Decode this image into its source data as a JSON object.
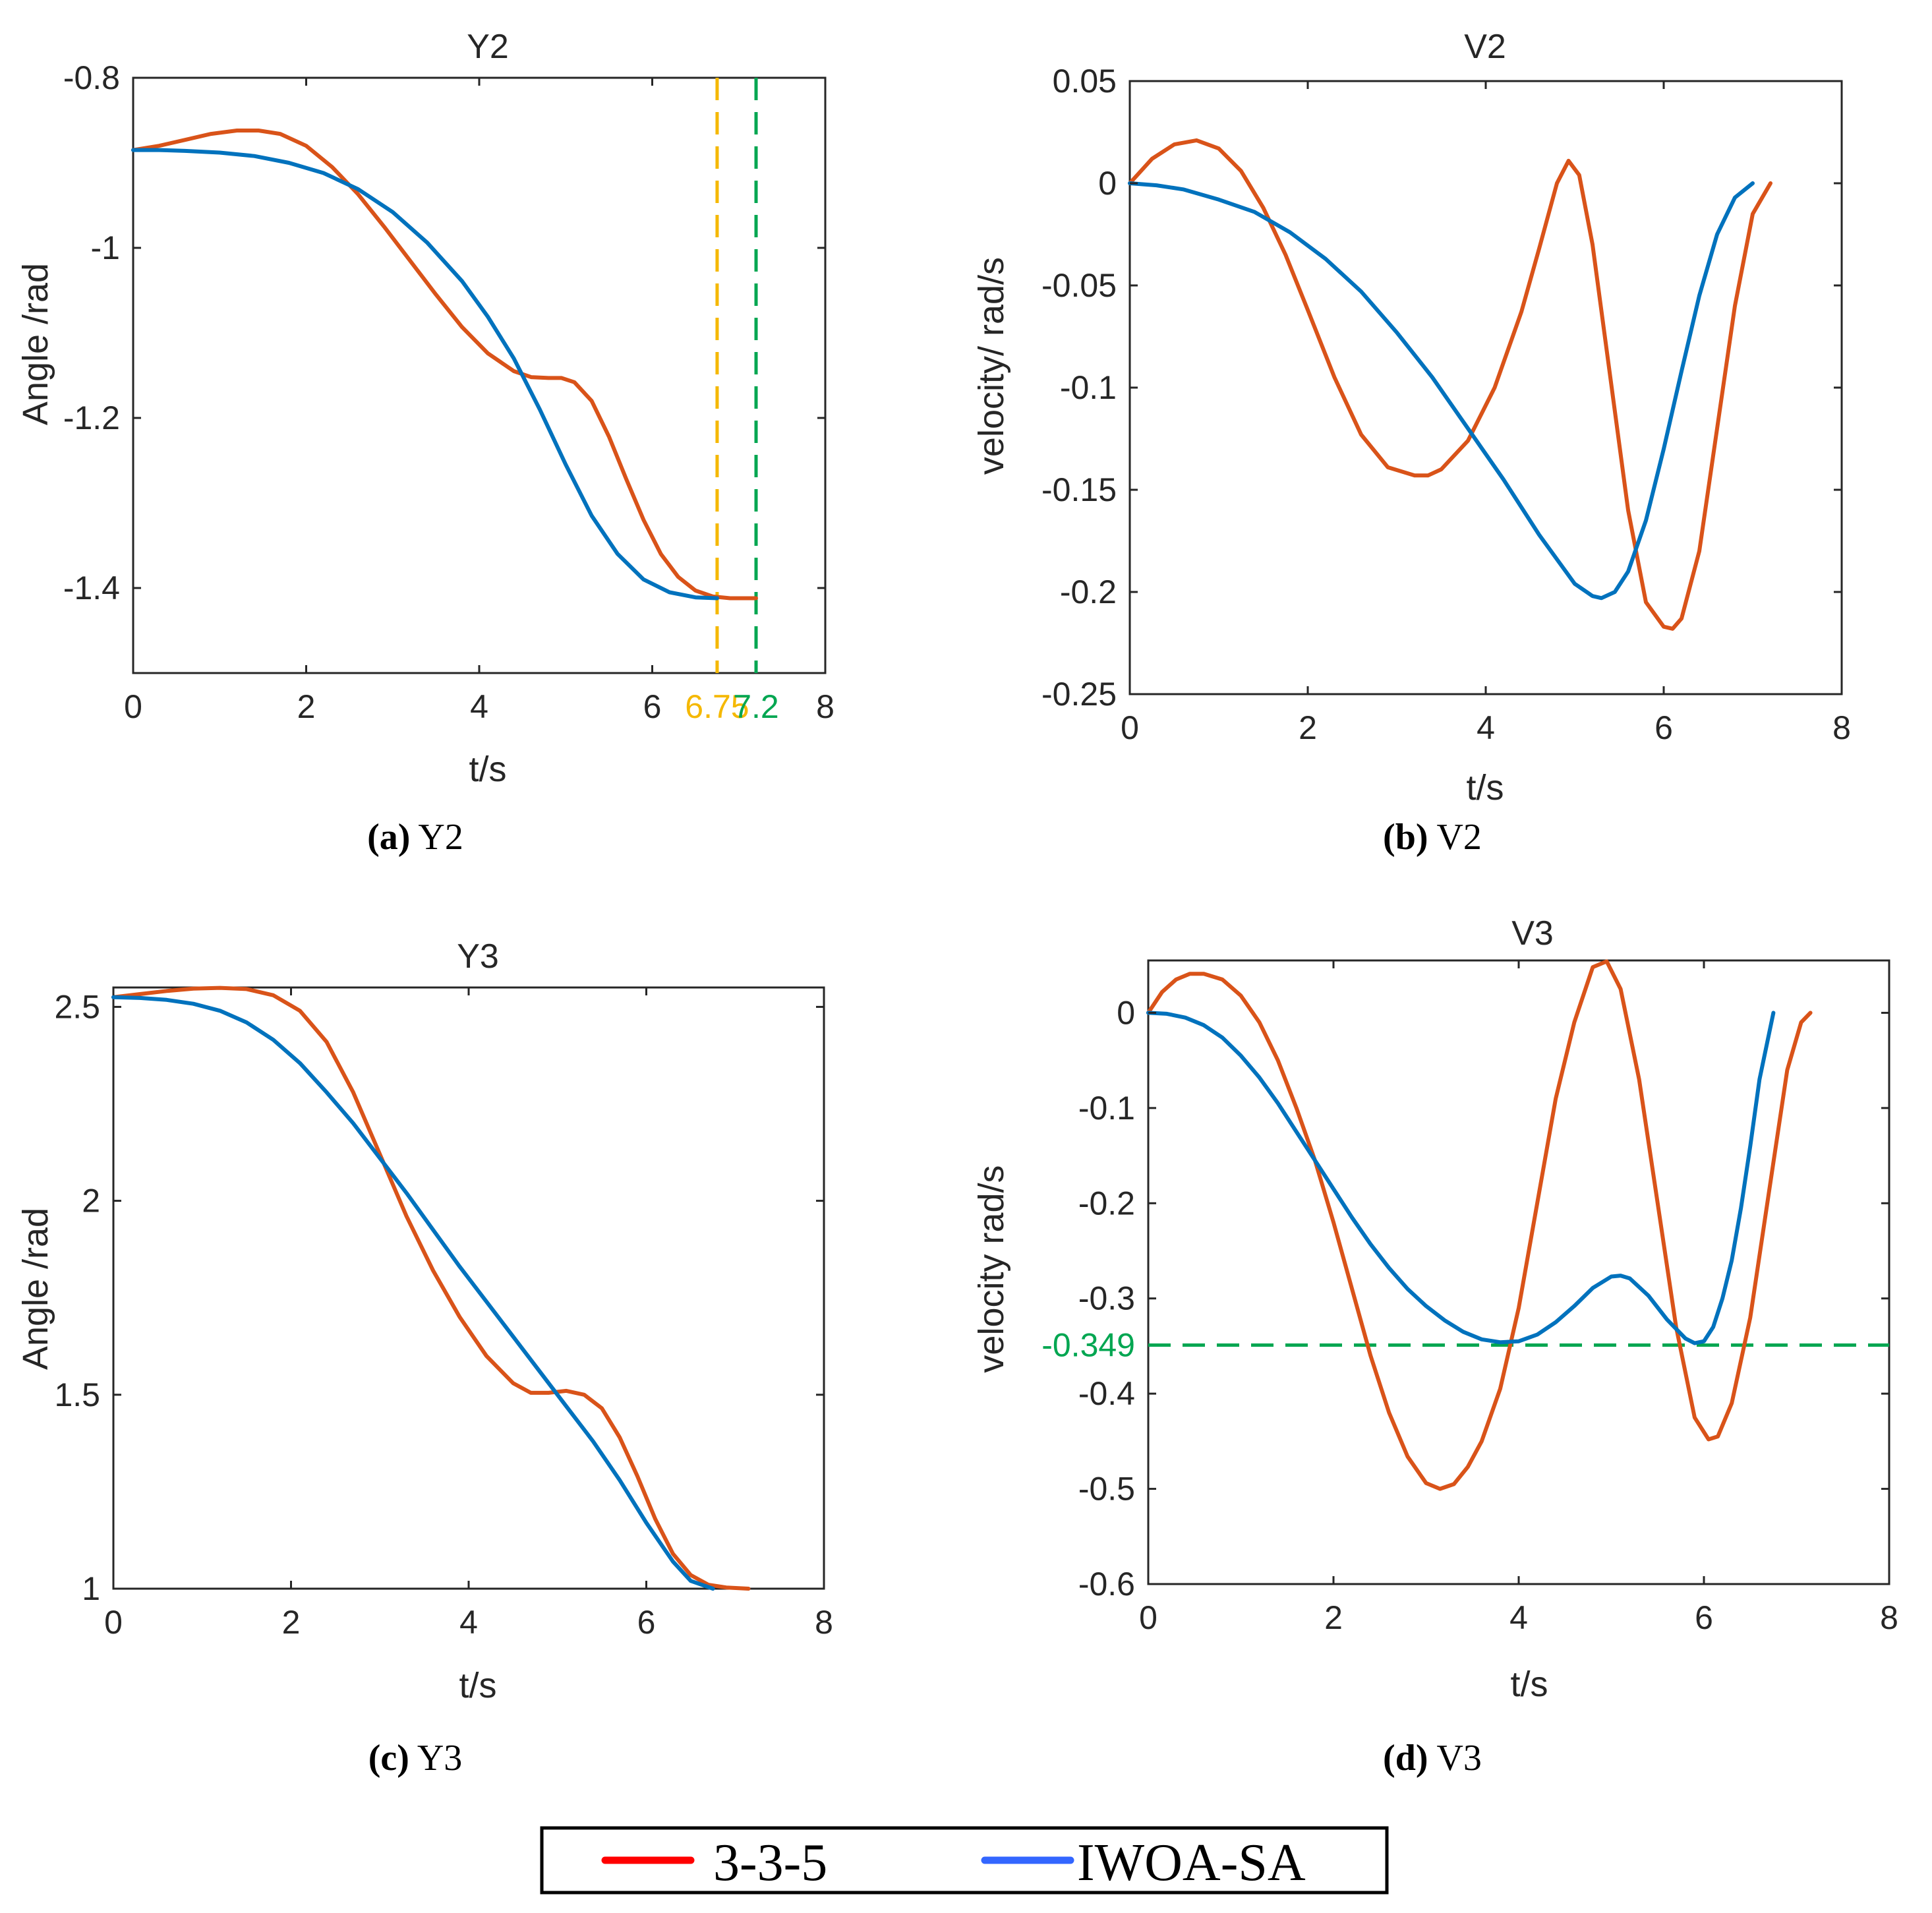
{
  "chart_data": [
    {
      "id": "a",
      "type": "line",
      "title": "Y2",
      "xlabel": "t/s",
      "ylabel": "Angle /rad",
      "xlim": [
        0,
        8
      ],
      "ylim": [
        -1.5,
        -0.8
      ],
      "xticks": [
        {
          "v": 0,
          "label": "0"
        },
        {
          "v": 2,
          "label": "2"
        },
        {
          "v": 4,
          "label": "4"
        },
        {
          "v": 6,
          "label": "6"
        },
        {
          "v": 6.75,
          "label": "6.75",
          "color": "#f5b800"
        },
        {
          "v": 7.2,
          "label": "7.2",
          "color": "#00a651"
        },
        {
          "v": 8,
          "label": "8"
        }
      ],
      "yticks": [
        {
          "v": -0.8,
          "label": "-0.8"
        },
        {
          "v": -1,
          "label": "-1"
        },
        {
          "v": -1.2,
          "label": "-1.2"
        },
        {
          "v": -1.4,
          "label": "-1.4"
        }
      ],
      "caption_letter": "(a)",
      "caption_text": " Y2",
      "reference_lines": [
        {
          "orientation": "vertical",
          "value": 6.75,
          "color": "#f5b800"
        },
        {
          "orientation": "vertical",
          "value": 7.2,
          "color": "#00a651"
        }
      ],
      "series": [
        {
          "name": "3-3-5",
          "color": "#d95319",
          "x": [
            0,
            0.3,
            0.6,
            0.9,
            1.2,
            1.45,
            1.7,
            2.0,
            2.3,
            2.6,
            2.9,
            3.2,
            3.5,
            3.8,
            4.1,
            4.4,
            4.6,
            4.8,
            4.95,
            5.1,
            5.3,
            5.5,
            5.7,
            5.9,
            6.1,
            6.3,
            6.5,
            6.7,
            6.9,
            7.2
          ],
          "y": [
            -0.885,
            -0.88,
            -0.873,
            -0.866,
            -0.862,
            -0.862,
            -0.866,
            -0.88,
            -0.905,
            -0.937,
            -0.975,
            -1.015,
            -1.055,
            -1.093,
            -1.124,
            -1.145,
            -1.152,
            -1.153,
            -1.153,
            -1.158,
            -1.18,
            -1.222,
            -1.272,
            -1.32,
            -1.36,
            -1.387,
            -1.403,
            -1.41,
            -1.412,
            -1.412
          ]
        },
        {
          "name": "IWOA-SA",
          "color": "#0072bd",
          "x": [
            0,
            0.3,
            0.6,
            1.0,
            1.4,
            1.8,
            2.2,
            2.6,
            3.0,
            3.4,
            3.8,
            4.1,
            4.4,
            4.7,
            5.0,
            5.3,
            5.6,
            5.9,
            6.2,
            6.5,
            6.75
          ],
          "y": [
            -0.885,
            -0.885,
            -0.886,
            -0.888,
            -0.892,
            -0.9,
            -0.912,
            -0.931,
            -0.958,
            -0.994,
            -1.039,
            -1.081,
            -1.13,
            -1.19,
            -1.255,
            -1.315,
            -1.36,
            -1.39,
            -1.405,
            -1.411,
            -1.412
          ]
        }
      ]
    },
    {
      "id": "b",
      "type": "line",
      "title": "V2",
      "xlabel": "t/s",
      "ylabel": "velocity/ rad/s",
      "xlim": [
        0,
        8
      ],
      "ylim": [
        -0.25,
        0.05
      ],
      "xticks": [
        {
          "v": 0,
          "label": "0"
        },
        {
          "v": 2,
          "label": "2"
        },
        {
          "v": 4,
          "label": "4"
        },
        {
          "v": 6,
          "label": "6"
        },
        {
          "v": 8,
          "label": "8"
        }
      ],
      "yticks": [
        {
          "v": 0.05,
          "label": "0.05"
        },
        {
          "v": 0,
          "label": "0"
        },
        {
          "v": -0.05,
          "label": "-0.05"
        },
        {
          "v": -0.1,
          "label": "-0.1"
        },
        {
          "v": -0.15,
          "label": "-0.15"
        },
        {
          "v": -0.2,
          "label": "-0.2"
        },
        {
          "v": -0.25,
          "label": "-0.25"
        }
      ],
      "caption_letter": "(b)",
      "caption_text": " V2",
      "reference_lines": [],
      "series": [
        {
          "name": "3-3-5",
          "color": "#d95319",
          "x": [
            0,
            0.25,
            0.5,
            0.75,
            1.0,
            1.25,
            1.5,
            1.75,
            2.0,
            2.3,
            2.6,
            2.9,
            3.2,
            3.35,
            3.5,
            3.8,
            4.1,
            4.4,
            4.6,
            4.8,
            4.93,
            5.05,
            5.2,
            5.4,
            5.6,
            5.8,
            6.0,
            6.1,
            6.2,
            6.4,
            6.6,
            6.8,
            7.0,
            7.2
          ],
          "y": [
            0,
            0.012,
            0.019,
            0.021,
            0.017,
            0.006,
            -0.012,
            -0.035,
            -0.062,
            -0.095,
            -0.123,
            -0.139,
            -0.143,
            -0.143,
            -0.14,
            -0.126,
            -0.1,
            -0.063,
            -0.032,
            0.0,
            0.011,
            0.004,
            -0.03,
            -0.095,
            -0.16,
            -0.205,
            -0.217,
            -0.218,
            -0.213,
            -0.18,
            -0.12,
            -0.06,
            -0.015,
            0
          ]
        },
        {
          "name": "IWOA-SA",
          "color": "#0072bd",
          "x": [
            0,
            0.3,
            0.6,
            1.0,
            1.4,
            1.8,
            2.2,
            2.6,
            3.0,
            3.4,
            3.8,
            4.2,
            4.6,
            5.0,
            5.2,
            5.3,
            5.45,
            5.6,
            5.8,
            6.0,
            6.2,
            6.4,
            6.6,
            6.8,
            7.0
          ],
          "y": [
            0,
            -0.001,
            -0.003,
            -0.008,
            -0.014,
            -0.024,
            -0.037,
            -0.053,
            -0.073,
            -0.095,
            -0.12,
            -0.145,
            -0.172,
            -0.196,
            -0.202,
            -0.203,
            -0.2,
            -0.19,
            -0.165,
            -0.13,
            -0.092,
            -0.055,
            -0.025,
            -0.007,
            0
          ]
        }
      ]
    },
    {
      "id": "c",
      "type": "line",
      "title": "Y3",
      "xlabel": "t/s",
      "ylabel": "Angle /rad",
      "xlim": [
        0,
        8
      ],
      "ylim": [
        1,
        2.55
      ],
      "xticks": [
        {
          "v": 0,
          "label": "0"
        },
        {
          "v": 2,
          "label": "2"
        },
        {
          "v": 4,
          "label": "4"
        },
        {
          "v": 6,
          "label": "6"
        },
        {
          "v": 8,
          "label": "8"
        }
      ],
      "yticks": [
        {
          "v": 2.5,
          "label": "2.5"
        },
        {
          "v": 2,
          "label": "2"
        },
        {
          "v": 1.5,
          "label": "1.5"
        },
        {
          "v": 1,
          "label": "1"
        }
      ],
      "caption_letter": "(c)",
      "caption_text": " Y3",
      "reference_lines": [],
      "series": [
        {
          "name": "3-3-5",
          "color": "#d95319",
          "x": [
            0,
            0.3,
            0.6,
            0.9,
            1.2,
            1.5,
            1.8,
            2.1,
            2.4,
            2.7,
            3.0,
            3.3,
            3.6,
            3.9,
            4.2,
            4.5,
            4.7,
            4.9,
            5.1,
            5.3,
            5.5,
            5.7,
            5.9,
            6.1,
            6.3,
            6.5,
            6.7,
            6.9,
            7.15
          ],
          "y": [
            2.525,
            2.533,
            2.541,
            2.547,
            2.549,
            2.546,
            2.53,
            2.49,
            2.41,
            2.28,
            2.12,
            1.96,
            1.82,
            1.7,
            1.6,
            1.53,
            1.505,
            1.505,
            1.51,
            1.5,
            1.465,
            1.39,
            1.29,
            1.18,
            1.09,
            1.035,
            1.01,
            1.003,
            1.0
          ]
        },
        {
          "name": "IWOA-SA",
          "color": "#0072bd",
          "x": [
            0,
            0.3,
            0.6,
            0.9,
            1.2,
            1.5,
            1.8,
            2.1,
            2.4,
            2.7,
            3.0,
            3.3,
            3.6,
            3.9,
            4.2,
            4.5,
            4.8,
            5.1,
            5.4,
            5.7,
            6.0,
            6.3,
            6.5,
            6.75
          ],
          "y": [
            2.525,
            2.523,
            2.518,
            2.508,
            2.49,
            2.46,
            2.415,
            2.355,
            2.28,
            2.2,
            2.11,
            2.02,
            1.925,
            1.83,
            1.74,
            1.65,
            1.56,
            1.47,
            1.38,
            1.28,
            1.17,
            1.07,
            1.02,
            1.0
          ]
        }
      ]
    },
    {
      "id": "d",
      "type": "line",
      "title": "V3",
      "xlabel": "t/s",
      "ylabel": "velocity  rad/s",
      "xlim": [
        0,
        8
      ],
      "ylim": [
        -0.6,
        0.055
      ],
      "xticks": [
        {
          "v": 0,
          "label": "0"
        },
        {
          "v": 2,
          "label": "2"
        },
        {
          "v": 4,
          "label": "4"
        },
        {
          "v": 6,
          "label": "6"
        },
        {
          "v": 8,
          "label": "8"
        }
      ],
      "yticks": [
        {
          "v": 0,
          "label": "0"
        },
        {
          "v": -0.1,
          "label": "-0.1"
        },
        {
          "v": -0.2,
          "label": "-0.2"
        },
        {
          "v": -0.3,
          "label": "-0.3"
        },
        {
          "v": -0.349,
          "label": "-0.349",
          "color": "#00a651"
        },
        {
          "v": -0.4,
          "label": "-0.4"
        },
        {
          "v": -0.5,
          "label": "-0.5"
        },
        {
          "v": -0.6,
          "label": "-0.6"
        }
      ],
      "caption_letter": "(d)",
      "caption_text": " V3",
      "reference_lines": [
        {
          "orientation": "horizontal",
          "value": -0.349,
          "color": "#00a651"
        }
      ],
      "series": [
        {
          "name": "3-3-5",
          "color": "#d95319",
          "x": [
            0,
            0.15,
            0.3,
            0.45,
            0.6,
            0.8,
            1.0,
            1.2,
            1.4,
            1.6,
            1.8,
            2.0,
            2.2,
            2.4,
            2.6,
            2.8,
            3.0,
            3.15,
            3.3,
            3.45,
            3.6,
            3.8,
            4.0,
            4.2,
            4.4,
            4.6,
            4.8,
            4.95,
            5.1,
            5.3,
            5.5,
            5.7,
            5.9,
            6.05,
            6.15,
            6.3,
            6.5,
            6.7,
            6.9,
            7.05,
            7.15
          ],
          "y": [
            0,
            0.022,
            0.035,
            0.041,
            0.041,
            0.035,
            0.018,
            -0.01,
            -0.05,
            -0.1,
            -0.155,
            -0.22,
            -0.29,
            -0.36,
            -0.42,
            -0.466,
            -0.494,
            -0.5,
            -0.495,
            -0.477,
            -0.45,
            -0.395,
            -0.31,
            -0.2,
            -0.09,
            -0.01,
            0.048,
            0.054,
            0.025,
            -0.07,
            -0.2,
            -0.33,
            -0.425,
            -0.448,
            -0.445,
            -0.41,
            -0.32,
            -0.19,
            -0.06,
            -0.01,
            0.0
          ]
        },
        {
          "name": "IWOA-SA",
          "color": "#0072bd",
          "x": [
            0,
            0.2,
            0.4,
            0.6,
            0.8,
            1.0,
            1.2,
            1.4,
            1.6,
            1.8,
            2.0,
            2.2,
            2.4,
            2.6,
            2.8,
            3.0,
            3.2,
            3.4,
            3.6,
            3.8,
            4.0,
            4.2,
            4.4,
            4.6,
            4.8,
            5.0,
            5.1,
            5.2,
            5.4,
            5.6,
            5.8,
            5.9,
            6.0,
            6.1,
            6.2,
            6.3,
            6.4,
            6.5,
            6.6,
            6.75
          ],
          "y": [
            0,
            -0.001,
            -0.005,
            -0.013,
            -0.026,
            -0.045,
            -0.068,
            -0.095,
            -0.125,
            -0.155,
            -0.185,
            -0.215,
            -0.243,
            -0.268,
            -0.29,
            -0.308,
            -0.323,
            -0.335,
            -0.343,
            -0.346,
            -0.345,
            -0.338,
            -0.325,
            -0.308,
            -0.289,
            -0.277,
            -0.276,
            -0.279,
            -0.297,
            -0.322,
            -0.342,
            -0.347,
            -0.345,
            -0.33,
            -0.3,
            -0.26,
            -0.205,
            -0.14,
            -0.07,
            0.0
          ]
        }
      ]
    }
  ],
  "legend": {
    "items": [
      {
        "label": "3-3-5",
        "color": "#ff0000"
      },
      {
        "label": "IWOA-SA",
        "color": "#3366ff"
      }
    ]
  }
}
